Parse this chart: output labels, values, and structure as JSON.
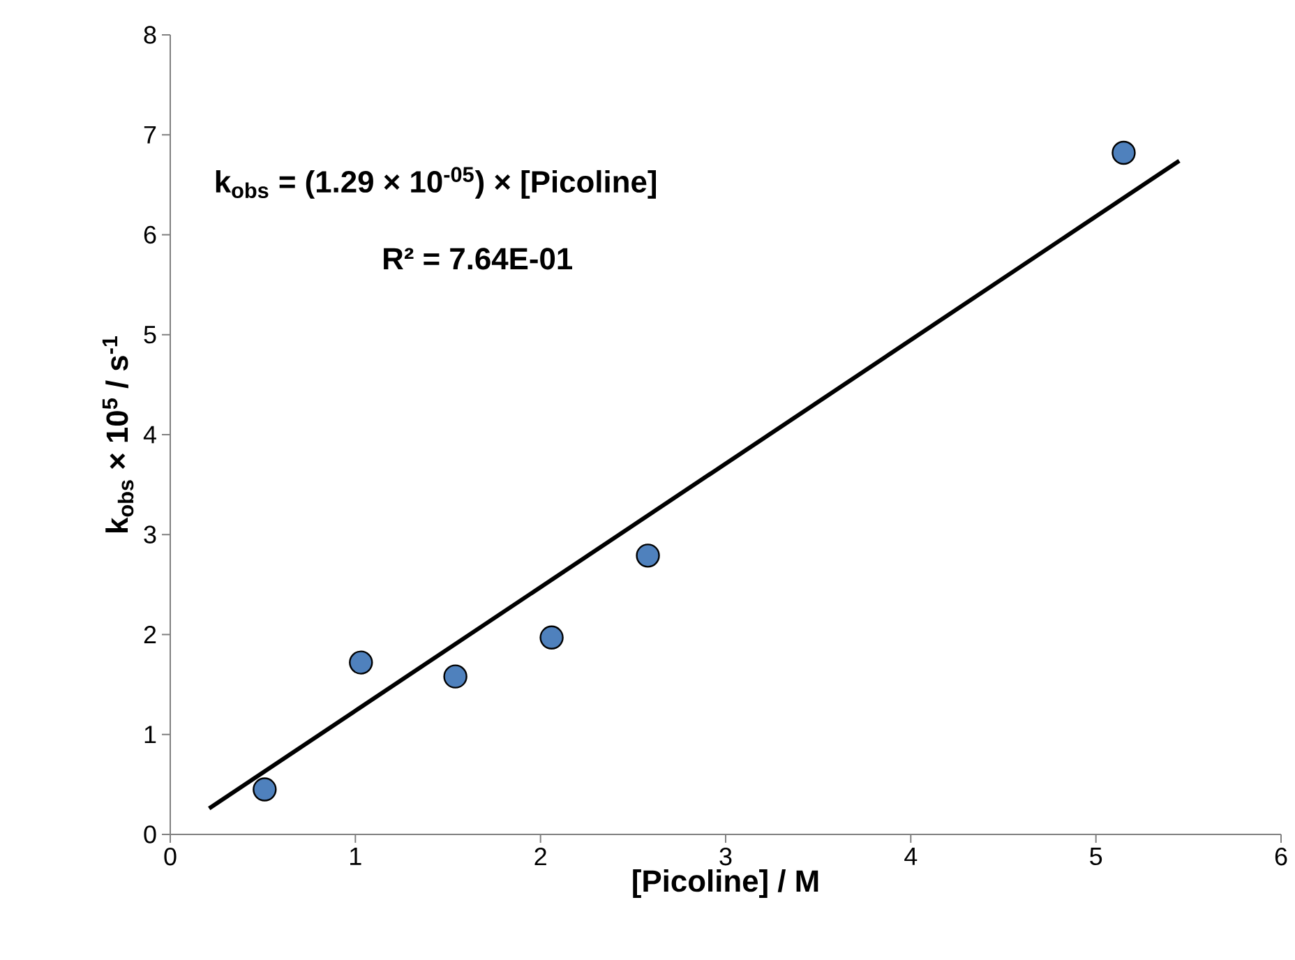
{
  "chart_data": {
    "type": "scatter",
    "xlabel": "[Picoline] / M",
    "ylabel": "k$_{obs}$ × 10$^{5}$ / s$^{-1}$",
    "annotations": [
      "k$_{obs}$ = (1.29 × 10$^{-05}$) × [Picoline]",
      "R² = 7.64E-01"
    ],
    "x": [
      0.51,
      1.03,
      1.54,
      2.06,
      2.58,
      5.15
    ],
    "series": [
      {
        "color": "#4f81bd",
        "marker": "circle",
        "values": [
          0.45,
          1.72,
          1.58,
          1.97,
          2.79,
          6.82
        ]
      },
      {
        "type": "line",
        "color": "#000000",
        "marker": "none",
        "line_style": "solid",
        "x": [
          0.21,
          5.45
        ],
        "values": [
          0.26,
          6.74
        ]
      }
    ],
    "xlim": [
      0,
      6
    ],
    "ylim": [
      0,
      8
    ],
    "xticks": [
      0,
      1,
      2,
      3,
      4,
      5,
      6
    ],
    "yticks": [
      0,
      1,
      2,
      3,
      4,
      5,
      6,
      7,
      8
    ]
  }
}
